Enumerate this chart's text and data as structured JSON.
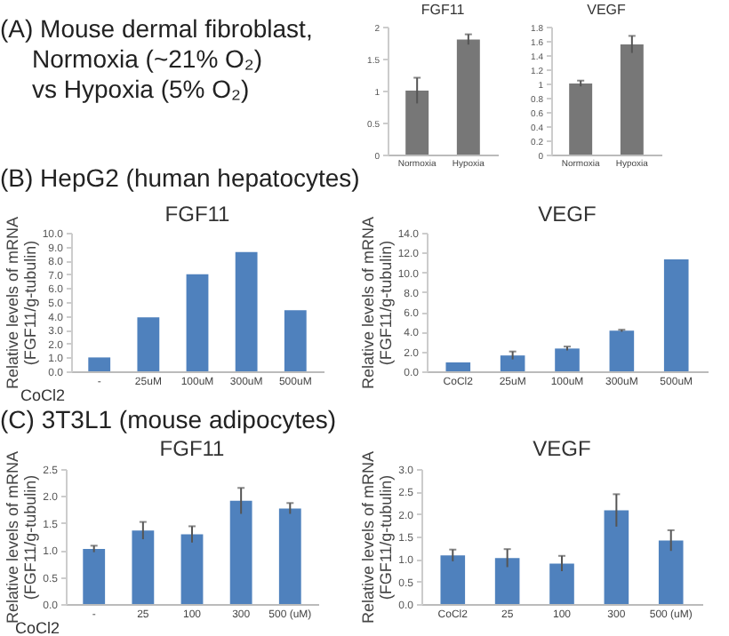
{
  "chart_data": [
    {
      "type": "bar",
      "title": "FGF11",
      "annotations": [
        "(A) Mouse dermal fibroblast,",
        "Normoxia (~21% O₂)",
        "vs Hypoxia (5% O₂)"
      ],
      "categories": [
        "Normoxia",
        "Hypoxia"
      ],
      "values": [
        1.0,
        1.8
      ],
      "errors": [
        0.2,
        0.08
      ],
      "color": "#777777",
      "ylim": [
        0,
        2
      ],
      "yticks": [
        0,
        0.5,
        1,
        1.5,
        2
      ]
    },
    {
      "type": "bar",
      "title": "VEGF",
      "categories": [
        "Normoxia",
        "Hypoxia"
      ],
      "values": [
        1.0,
        1.55
      ],
      "errors": [
        0.04,
        0.12
      ],
      "color": "#777777",
      "ylim": [
        0,
        1.8
      ],
      "yticks": [
        0,
        0.2,
        0.4,
        0.6,
        0.8,
        1,
        1.2,
        1.4,
        1.6,
        1.8
      ]
    },
    {
      "type": "bar",
      "title": "FGF11",
      "annotations": [
        "(B) HepG2 (human hepatocytes)"
      ],
      "ylabel": "Relative levels of mRNA (FGF11/g-tubulin)",
      "xlabel": "CoCl2",
      "categories": [
        "-",
        "25uM",
        "100uM",
        "300uM",
        "500uM"
      ],
      "values": [
        1.0,
        3.9,
        7.0,
        8.6,
        4.4
      ],
      "color": "#4f81bd",
      "ylim": [
        0,
        10
      ],
      "yticks": [
        {
          "value": 0,
          "label": "0.0"
        },
        {
          "value": 1,
          "label": "1.0"
        },
        {
          "value": 2,
          "label": "2.0"
        },
        {
          "value": 3,
          "label": "3.0"
        },
        {
          "value": 4,
          "label": "4.0"
        },
        {
          "value": 5,
          "label": "5.0"
        },
        {
          "value": 6,
          "label": "6.0"
        },
        {
          "value": 7,
          "label": "7.0"
        },
        {
          "value": 8,
          "label": "8.0"
        },
        {
          "value": 9,
          "label": "9.0"
        },
        {
          "value": 10,
          "label": "10.0"
        }
      ]
    },
    {
      "type": "bar",
      "title": "VEGF",
      "ylabel": "Relative levels of mRNA (FGF11/g-tubulin)",
      "categories": [
        "CoCl2",
        "25uM",
        "100uM",
        "300uM",
        "500uM"
      ],
      "values": [
        0.9,
        1.6,
        2.3,
        4.1,
        11.3
      ],
      "errors": [
        null,
        0.4,
        0.2,
        0.1,
        null
      ],
      "color": "#4f81bd",
      "ylim": [
        0,
        14
      ],
      "yticks": [
        {
          "value": 0,
          "label": "0.0"
        },
        {
          "value": 2,
          "label": "2.0"
        },
        {
          "value": 4,
          "label": "4.0"
        },
        {
          "value": 6,
          "label": "6.0"
        },
        {
          "value": 8,
          "label": "8.0"
        },
        {
          "value": 10,
          "label": "10.0"
        },
        {
          "value": 12,
          "label": "12.0"
        },
        {
          "value": 14,
          "label": "14.0"
        }
      ]
    },
    {
      "type": "bar",
      "title": "FGF11",
      "annotations": [
        "(C) 3T3L1 (mouse adipocytes)"
      ],
      "ylabel": "Relative levels of mRNA (FGF11/g-tubulin)",
      "xlabel": "CoCl2",
      "categories": [
        "-",
        "25",
        "100",
        "300",
        "500 (uM)"
      ],
      "values": [
        1.02,
        1.36,
        1.29,
        1.91,
        1.77
      ],
      "errors": [
        0.06,
        0.16,
        0.15,
        0.24,
        0.1
      ],
      "color": "#4f81bd",
      "ylim": [
        0,
        2.5
      ],
      "yticks": [
        {
          "value": 0,
          "label": "0.0"
        },
        {
          "value": 0.5,
          "label": "0.5"
        },
        {
          "value": 1,
          "label": "1.0"
        },
        {
          "value": 1.5,
          "label": "1.5"
        },
        {
          "value": 2,
          "label": "2.0"
        },
        {
          "value": 2.5,
          "label": "2.5"
        }
      ]
    },
    {
      "type": "bar",
      "title": "VEGF",
      "ylabel": "Relative levels of mRNA (FGF11/g-tubulin)",
      "categories": [
        "CoCl2",
        "25",
        "100",
        "300",
        "500 (uM)"
      ],
      "values": [
        1.08,
        1.02,
        0.9,
        2.08,
        1.41
      ],
      "errors": [
        0.13,
        0.2,
        0.17,
        0.36,
        0.23
      ],
      "color": "#4f81bd",
      "ylim": [
        0,
        3
      ],
      "yticks": [
        {
          "value": 0,
          "label": "0.0"
        },
        {
          "value": 0.5,
          "label": "0.5"
        },
        {
          "value": 1,
          "label": "1.0"
        },
        {
          "value": 1.5,
          "label": "1.5"
        },
        {
          "value": 2,
          "label": "2.0"
        },
        {
          "value": 2.5,
          "label": "2.5"
        },
        {
          "value": 3,
          "label": "3.0"
        }
      ]
    }
  ]
}
